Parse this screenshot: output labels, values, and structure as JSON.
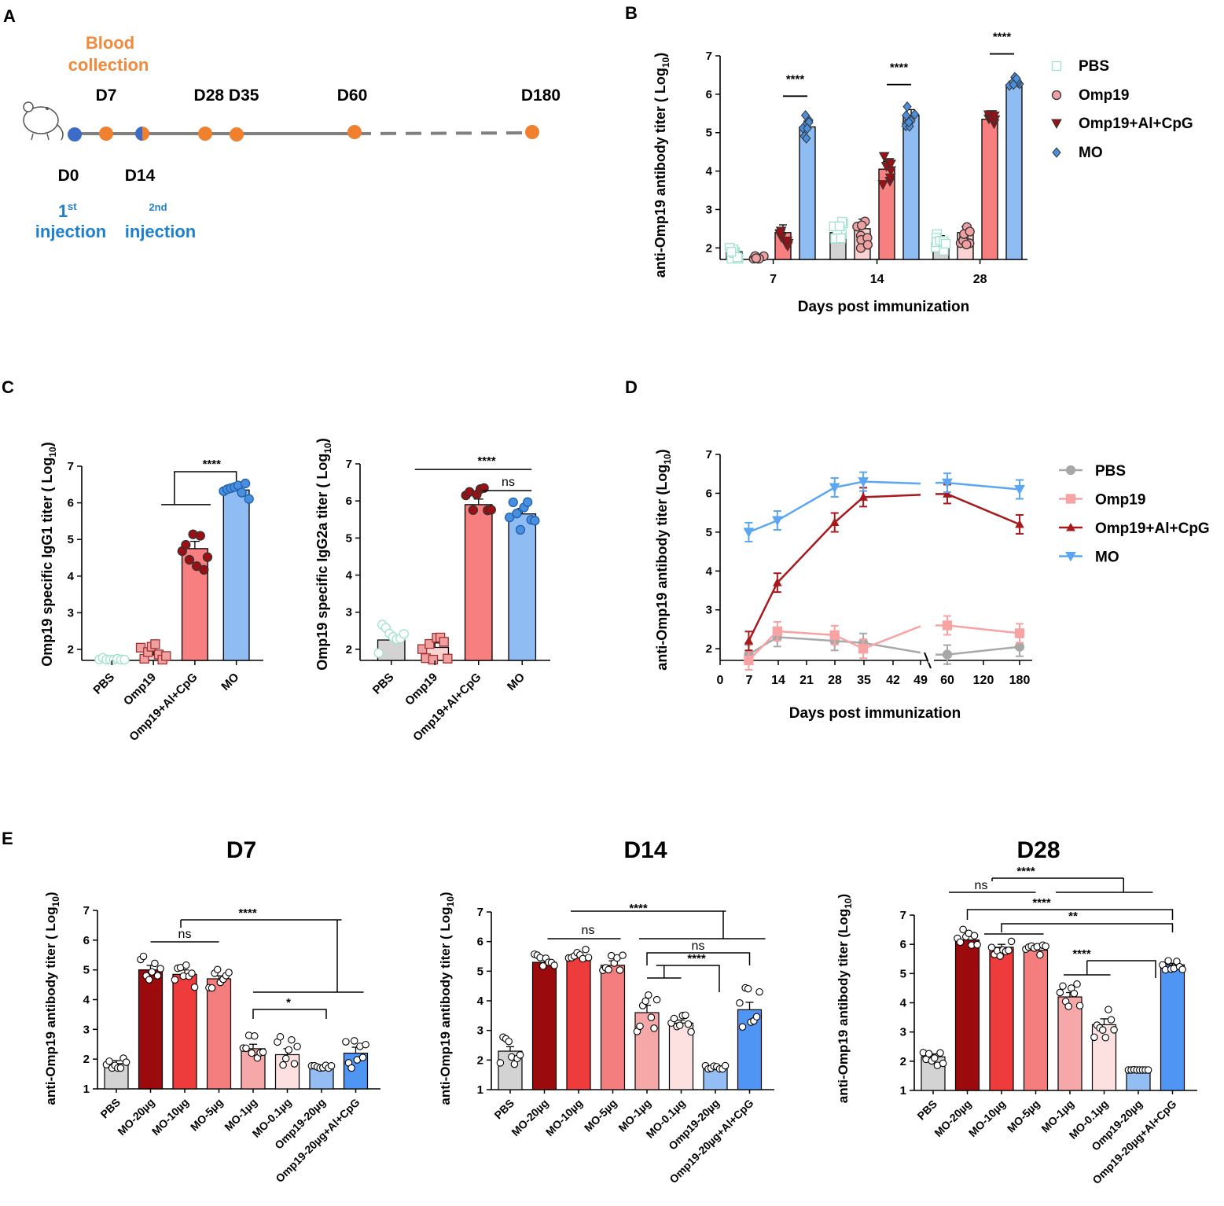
{
  "colors": {
    "pbs_fill": "#d3d3d3",
    "omp19_fill": "#fbd3d3",
    "alcpg_fill": "#f87f7f",
    "mo_fill": "#8fbdf3",
    "pbs_marker": "#9ee2cc",
    "omp19_marker": "#f0a0a0",
    "alcpg_marker": "#9e0f14",
    "mo_marker": "#4a8fde",
    "line_pbs": "#a8a8a8",
    "line_omp19": "#f7a3a3",
    "line_alcpg": "#a8191c",
    "line_mo": "#5ba6f3",
    "timeline_blue": "#3d6bc8",
    "timeline_orange": "#f07f2e",
    "injection_text": "#1f7fcc",
    "blood_text": "#f08a3c",
    "e_mo20": "#9b0a0c",
    "e_mo10": "#ee3c3c",
    "e_mo5": "#f47e7e",
    "e_mo1": "#f6a8a8",
    "e_mo01": "#fde0e0",
    "e_omp": "#93bdf3",
    "e_alcpg": "#4f95f3"
  },
  "panelA": {
    "label": "A",
    "blood_collection_line1": "Blood",
    "blood_collection_line2": "collection",
    "days_top": [
      "D7",
      "D28 D35",
      "D60",
      "D180"
    ],
    "days_bottom": [
      "D0",
      "D14"
    ],
    "first_injection_num": "1",
    "first_injection_sup": "st",
    "first_injection_word": "injection",
    "second_injection_sup": "2nd",
    "second_injection_word": "injection",
    "icon": "mouse-icon"
  },
  "chart_data": [
    {
      "panel": "B",
      "type": "bar",
      "ylabel_main": "anti-Omp19 antibody titer ( Log",
      "ylabel_sub": "10",
      "ylabel_end": ")",
      "xlabel": "Days post immunization",
      "categories": [
        "7",
        "14",
        "28"
      ],
      "ylim": [
        1.7,
        7
      ],
      "yticks": [
        "2",
        "3",
        "4",
        "5",
        "6",
        "7"
      ],
      "series": [
        {
          "name": "PBS",
          "values": [
            1.9,
            2.4,
            2.2
          ],
          "errors": [
            0.15,
            0.15,
            0.12
          ]
        },
        {
          "name": "Omp19",
          "values": [
            1.7,
            2.5,
            2.4
          ],
          "errors": [
            0.02,
            0.25,
            0.15
          ]
        },
        {
          "name": "Omp19+Al+CpG",
          "values": [
            2.4,
            4.05,
            5.35
          ],
          "errors": [
            0.2,
            0.2,
            0.05
          ]
        },
        {
          "name": "MO",
          "values": [
            5.15,
            5.45,
            6.25
          ],
          "errors": [
            0.15,
            0.15,
            0.08
          ]
        }
      ],
      "significance": [
        {
          "label": "****",
          "group": "7"
        },
        {
          "label": "****",
          "group": "14"
        },
        {
          "label": "****",
          "group": "28"
        }
      ]
    },
    {
      "panel": "C1",
      "type": "bar",
      "ylabel_main": "Omp19 specific IgG1 titer ( Log",
      "ylabel_sub": "10",
      "ylabel_end": ")",
      "categories": [
        "PBS",
        "Omp19",
        "Omp19+Al+CpG",
        "MO"
      ],
      "values": [
        1.7,
        1.85,
        4.75,
        6.35
      ],
      "errors": [
        0.02,
        0.1,
        0.2,
        0.08
      ],
      "ylim": [
        1.7,
        7
      ],
      "yticks": [
        "2",
        "3",
        "4",
        "5",
        "6",
        "7"
      ],
      "significance": [
        {
          "label": "****"
        }
      ]
    },
    {
      "panel": "C2",
      "type": "bar",
      "ylabel_main": "Omp19 specific IgG2a titer ( Log",
      "ylabel_sub": "10",
      "ylabel_end": ")",
      "categories": [
        "PBS",
        "Omp19",
        "Omp19+Al+CpG",
        "MO"
      ],
      "values": [
        2.25,
        2.05,
        5.9,
        5.65
      ],
      "errors": [
        0.15,
        0.12,
        0.15,
        0.15
      ],
      "ylim": [
        1.7,
        7
      ],
      "yticks": [
        "2",
        "3",
        "4",
        "5",
        "6",
        "7"
      ],
      "significance": [
        {
          "label": "****"
        },
        {
          "label": "ns"
        }
      ]
    },
    {
      "panel": "D",
      "type": "line",
      "ylabel_main": "anti-Omp19 antibody titer (Log",
      "ylabel_sub": "10",
      "ylabel_end": ")",
      "xlabel": "Days post immunization",
      "x": [
        7,
        14,
        28,
        35,
        60,
        180
      ],
      "xticks": [
        "0",
        "7",
        "14",
        "21",
        "28",
        "35",
        "42",
        "49",
        "60",
        "120",
        "180"
      ],
      "ylim": [
        1.7,
        7
      ],
      "yticks": [
        "2",
        "3",
        "4",
        "5",
        "6",
        "7"
      ],
      "series": [
        {
          "name": "PBS",
          "values": [
            1.85,
            2.3,
            2.2,
            2.15,
            1.85,
            2.05
          ]
        },
        {
          "name": "Omp19",
          "values": [
            1.7,
            2.45,
            2.35,
            2.0,
            2.6,
            2.4
          ]
        },
        {
          "name": "Omp19+Al+CpG",
          "values": [
            2.2,
            3.7,
            5.25,
            5.9,
            5.98,
            5.2
          ]
        },
        {
          "name": "MO",
          "values": [
            5.0,
            5.3,
            6.15,
            6.3,
            6.27,
            6.1
          ]
        }
      ]
    },
    {
      "panel": "E1",
      "type": "bar",
      "title": "D7",
      "ylabel_main": "anti-Omp19 antibody titer ( Log",
      "ylabel_sub": "10",
      "ylabel_end": ")",
      "categories": [
        "PBS",
        "MO-20µg",
        "MO-10µg",
        "MO-5µg",
        "MO-1µg",
        "MO-0.1µg",
        "Omp19-20µg",
        "Omp19-20µg+Al+CpG"
      ],
      "values": [
        1.85,
        5.0,
        4.85,
        4.7,
        2.35,
        2.15,
        1.7,
        2.2
      ],
      "errors": [
        0.1,
        0.15,
        0.15,
        0.1,
        0.15,
        0.2,
        0.03,
        0.2
      ],
      "ylim": [
        1,
        7
      ],
      "yticks": [
        "1",
        "2",
        "3",
        "4",
        "5",
        "6",
        "7"
      ],
      "significance": [
        {
          "label": "ns"
        },
        {
          "label": "****"
        },
        {
          "label": "*"
        }
      ]
    },
    {
      "panel": "E2",
      "type": "bar",
      "title": "D14",
      "ylabel_main": "anti-Omp19 antibody titer ( Log",
      "ylabel_sub": "10",
      "ylabel_end": ")",
      "categories": [
        "PBS",
        "MO-20µg",
        "MO-10µg",
        "MO-5µg",
        "MO-1µg",
        "MO-0.1µg",
        "Omp19-20µg",
        "Omp19-20µg+Al+CpG"
      ],
      "values": [
        2.3,
        5.3,
        5.5,
        5.2,
        3.6,
        3.25,
        1.7,
        3.7
      ],
      "errors": [
        0.15,
        0.2,
        0.08,
        0.15,
        0.25,
        0.1,
        0.03,
        0.25
      ],
      "ylim": [
        1,
        7
      ],
      "yticks": [
        "1",
        "2",
        "3",
        "4",
        "5",
        "6",
        "7"
      ],
      "significance": [
        {
          "label": "ns"
        },
        {
          "label": "****"
        },
        {
          "label": "ns"
        },
        {
          "label": "****"
        }
      ]
    },
    {
      "panel": "E3",
      "type": "bar",
      "title": "D28",
      "ylabel_main": "anti-Omp19 antibody titer (Log",
      "ylabel_sub": "10",
      "ylabel_end": ")",
      "categories": [
        "PBS",
        "MO-20µg",
        "MO-10µg",
        "MO-5µg",
        "MO-1µg",
        "MO-0.1µg",
        "Omp19-20µg",
        "Omp19-20µg+Al+CpG"
      ],
      "values": [
        2.15,
        6.15,
        5.9,
        5.8,
        4.2,
        3.25,
        1.7,
        5.3
      ],
      "errors": [
        0.1,
        0.12,
        0.1,
        0.05,
        0.15,
        0.2,
        0.03,
        0.05
      ],
      "ylim": [
        1,
        7
      ],
      "yticks": [
        "1",
        "2",
        "3",
        "4",
        "5",
        "6",
        "7"
      ],
      "significance": [
        {
          "label": "****"
        },
        {
          "label": "ns"
        },
        {
          "label": "****"
        },
        {
          "label": "**"
        },
        {
          "label": "****"
        }
      ]
    }
  ],
  "labels": {
    "B": "B",
    "C": "C",
    "D": "D",
    "E": "E"
  }
}
